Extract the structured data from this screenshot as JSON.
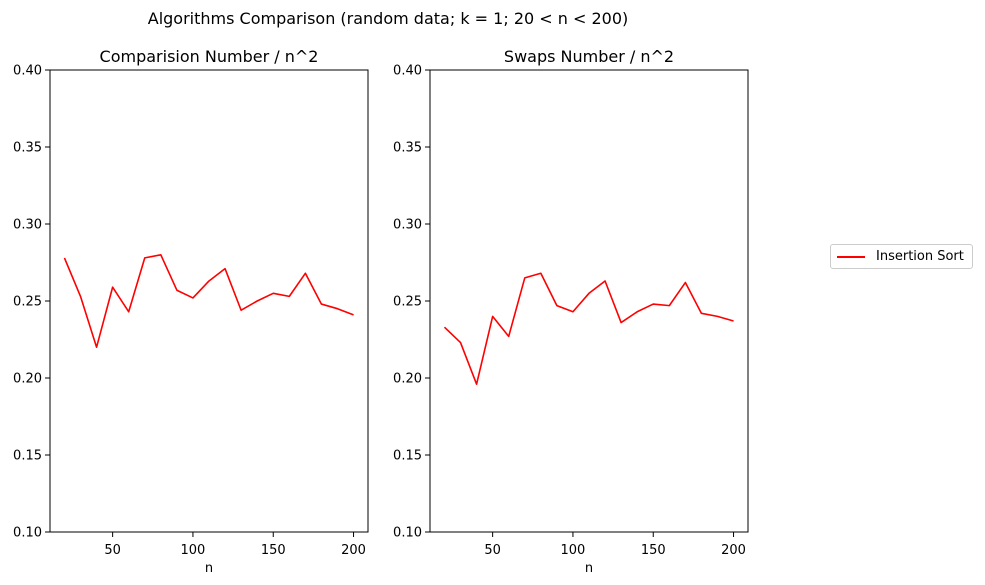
{
  "suptitle": "Algorithms Comparison (random data;  k = 1;  20 < n < 200)",
  "legend": {
    "entries": [
      {
        "label": "Insertion Sort",
        "color": "#ff0000",
        "line": "solid"
      }
    ],
    "placement": "right"
  },
  "chart_data": [
    {
      "type": "line",
      "title": "Comparision Number / n^2",
      "xlabel": "n",
      "ylabel": "",
      "xlim": [
        11,
        209
      ],
      "ylim": [
        0.1,
        0.4
      ],
      "xticks": [
        50,
        100,
        150,
        200
      ],
      "yticks": [
        0.1,
        0.15,
        0.2,
        0.25,
        0.3,
        0.35,
        0.4
      ],
      "ytick_labels": [
        "0.10",
        "0.15",
        "0.20",
        "0.25",
        "0.30",
        "0.35",
        "0.40"
      ],
      "grid": false,
      "series": [
        {
          "name": "Insertion Sort",
          "color": "#ff0000",
          "x": [
            20,
            30,
            40,
            50,
            60,
            70,
            80,
            90,
            100,
            110,
            120,
            130,
            140,
            150,
            160,
            170,
            180,
            190,
            200
          ],
          "y": [
            0.278,
            0.253,
            0.22,
            0.259,
            0.243,
            0.278,
            0.28,
            0.257,
            0.252,
            0.263,
            0.271,
            0.244,
            0.25,
            0.255,
            0.253,
            0.268,
            0.248,
            0.245,
            0.241
          ]
        }
      ]
    },
    {
      "type": "line",
      "title": "Swaps Number / n^2",
      "xlabel": "n",
      "ylabel": "",
      "xlim": [
        11,
        209
      ],
      "ylim": [
        0.1,
        0.4
      ],
      "xticks": [
        50,
        100,
        150,
        200
      ],
      "yticks": [
        0.1,
        0.15,
        0.2,
        0.25,
        0.3,
        0.35,
        0.4
      ],
      "ytick_labels": [
        "0.10",
        "0.15",
        "0.20",
        "0.25",
        "0.30",
        "0.35",
        "0.40"
      ],
      "grid": false,
      "series": [
        {
          "name": "Insertion Sort",
          "color": "#ff0000",
          "x": [
            20,
            30,
            40,
            50,
            60,
            70,
            80,
            90,
            100,
            110,
            120,
            130,
            140,
            150,
            160,
            170,
            180,
            190,
            200
          ],
          "y": [
            0.233,
            0.223,
            0.196,
            0.24,
            0.227,
            0.265,
            0.268,
            0.247,
            0.243,
            0.255,
            0.263,
            0.236,
            0.243,
            0.248,
            0.247,
            0.262,
            0.242,
            0.24,
            0.237
          ]
        }
      ]
    }
  ]
}
